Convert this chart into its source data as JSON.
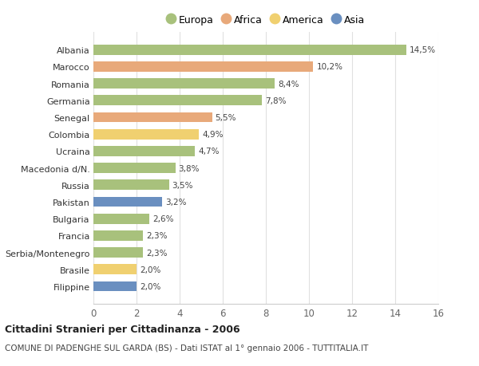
{
  "countries": [
    "Albania",
    "Marocco",
    "Romania",
    "Germania",
    "Senegal",
    "Colombia",
    "Ucraina",
    "Macedonia d/N.",
    "Russia",
    "Pakistan",
    "Bulgaria",
    "Francia",
    "Serbia/Montenegro",
    "Brasile",
    "Filippine"
  ],
  "values": [
    14.5,
    10.2,
    8.4,
    7.8,
    5.5,
    4.9,
    4.7,
    3.8,
    3.5,
    3.2,
    2.6,
    2.3,
    2.3,
    2.0,
    2.0
  ],
  "labels": [
    "14,5%",
    "10,2%",
    "8,4%",
    "7,8%",
    "5,5%",
    "4,9%",
    "4,7%",
    "3,8%",
    "3,5%",
    "3,2%",
    "2,6%",
    "2,3%",
    "2,3%",
    "2,0%",
    "2,0%"
  ],
  "continents": [
    "Europa",
    "Africa",
    "Europa",
    "Europa",
    "Africa",
    "America",
    "Europa",
    "Europa",
    "Europa",
    "Asia",
    "Europa",
    "Europa",
    "Europa",
    "America",
    "Asia"
  ],
  "continent_colors": {
    "Europa": "#a8c17c",
    "Africa": "#e8a97a",
    "America": "#f0d070",
    "Asia": "#6a8fc0"
  },
  "legend_order": [
    "Europa",
    "Africa",
    "America",
    "Asia"
  ],
  "title": "Cittadini Stranieri per Cittadinanza - 2006",
  "subtitle": "COMUNE DI PADENGHE SUL GARDA (BS) - Dati ISTAT al 1° gennaio 2006 - TUTTITALIA.IT",
  "xlim": [
    0,
    16
  ],
  "xticks": [
    0,
    2,
    4,
    6,
    8,
    10,
    12,
    14,
    16
  ],
  "bg_color": "#ffffff",
  "grid_color": "#e0e0e0",
  "bar_height": 0.6
}
